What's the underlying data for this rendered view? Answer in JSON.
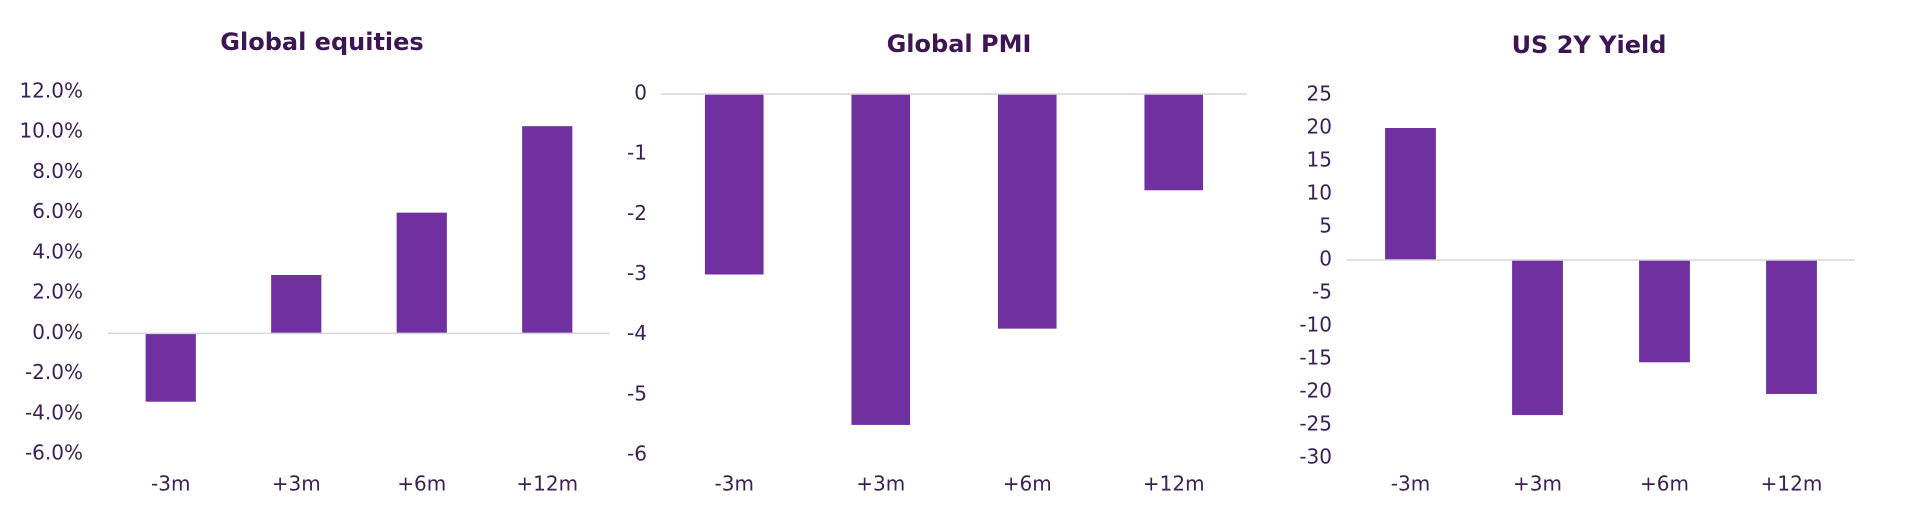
{
  "chart_data": [
    {
      "type": "bar",
      "title": "Global equities",
      "categories": [
        "-3m",
        "+3m",
        "+6m",
        "+12m"
      ],
      "values": [
        -3.4,
        2.9,
        6.0,
        10.3
      ],
      "color": "#7030a0",
      "ylim": [
        -6,
        12
      ],
      "yticks": [
        {
          "value": -6,
          "label": "-6.0%"
        },
        {
          "value": -4,
          "label": "-4.0%"
        },
        {
          "value": -2,
          "label": "-2.0%"
        },
        {
          "value": 0,
          "label": "0.0%"
        },
        {
          "value": 2,
          "label": "2.0%"
        },
        {
          "value": 4,
          "label": "4.0%"
        },
        {
          "value": 6,
          "label": "6.0%"
        },
        {
          "value": 8,
          "label": "8.0%"
        },
        {
          "value": 10,
          "label": "10.0%"
        },
        {
          "value": 12,
          "label": "12.0%"
        }
      ],
      "grid": false
    },
    {
      "type": "bar",
      "title": "Global PMI",
      "categories": [
        "-3m",
        "+3m",
        "+6m",
        "+12m"
      ],
      "values": [
        -3.0,
        -5.5,
        -3.9,
        -1.6
      ],
      "color": "#7030a0",
      "ylim": [
        -6,
        0
      ],
      "yticks": [
        -6,
        -5,
        -4,
        -3,
        -2,
        -1,
        0
      ],
      "grid": false
    },
    {
      "type": "bar",
      "title": "US 2Y Yield",
      "categories": [
        "-3m",
        "+3m",
        "+6m",
        "+12m"
      ],
      "values": [
        20,
        -23.5,
        -15.5,
        -20.3
      ],
      "color": "#7030a0",
      "ylim": [
        -30,
        25
      ],
      "yticks": [
        -30,
        -25,
        -20,
        -15,
        -10,
        -5,
        0,
        5,
        10,
        15,
        20,
        25
      ],
      "grid": false
    }
  ]
}
